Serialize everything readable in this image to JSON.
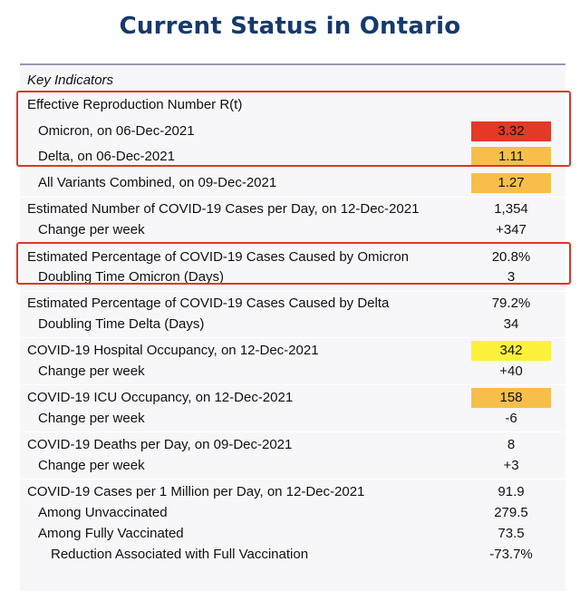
{
  "title": "Current Status in Ontario",
  "header": "Key Indicators",
  "colors": {
    "red": "#e23a26",
    "orange": "#f7bf4a",
    "yellow": "#fbf13a",
    "highlight_border": "#e3342b",
    "title": "#163a6b"
  },
  "rows": [
    {
      "label": "Effective Reproduction Number R(t)",
      "value": ""
    },
    {
      "label": "Omicron, on 06-Dec-2021",
      "value": "3.32"
    },
    {
      "label": "Delta, on 06-Dec-2021",
      "value": "1.11"
    },
    {
      "label": "All Variants Combined, on 09-Dec-2021",
      "value": "1.27"
    },
    {
      "label": "Estimated Number of COVID-19 Cases per Day, on 12-Dec-2021",
      "value": "1,354"
    },
    {
      "label": "Change per week",
      "value": "+347"
    },
    {
      "label": "Estimated Percentage of COVID-19 Cases Caused by Omicron",
      "value": "20.8%"
    },
    {
      "label": "Doubling Time Omicron (Days)",
      "value": "3"
    },
    {
      "label": "Estimated Percentage of COVID-19 Cases Caused by Delta",
      "value": "79.2%"
    },
    {
      "label": "Doubling Time Delta (Days)",
      "value": "34"
    },
    {
      "label": "COVID-19 Hospital Occupancy, on 12-Dec-2021",
      "value": "342"
    },
    {
      "label": "Change per week",
      "value": "+40"
    },
    {
      "label": "COVID-19 ICU Occupancy, on 12-Dec-2021",
      "value": "158"
    },
    {
      "label": "Change per week",
      "value": "-6"
    },
    {
      "label": "COVID-19 Deaths per Day, on 09-Dec-2021",
      "value": "8"
    },
    {
      "label": "Change per week",
      "value": "+3"
    },
    {
      "label": "COVID-19 Cases per 1 Million per Day, on 12-Dec-2021",
      "value": "91.9"
    },
    {
      "label": "Among Unvaccinated",
      "value": "279.5"
    },
    {
      "label": "Among Fully Vaccinated",
      "value": "73.5"
    },
    {
      "label": "Reduction Associated with Full Vaccination",
      "value": "-73.7%"
    }
  ]
}
